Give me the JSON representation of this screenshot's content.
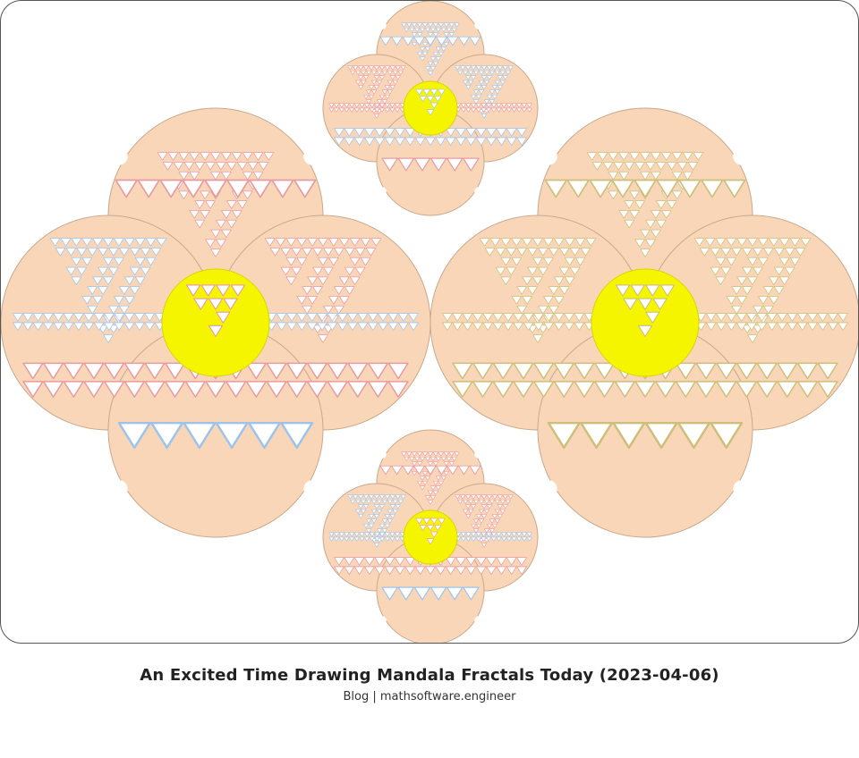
{
  "artwork": {
    "colors": {
      "petal": "#f9d6b8",
      "petal_outline": "#c9a88c",
      "center": "#f5f500",
      "cutout": "#ffffff",
      "tint_left": "#e79aa0",
      "tint_blue": "#9ec3ea",
      "tint_right": "#cdbf7a"
    }
  },
  "caption": {
    "title": "An Excited Time Drawing Mandala Fractals Today (2023-04-06)",
    "subtitle": "Blog | mathsoftware.engineer"
  }
}
